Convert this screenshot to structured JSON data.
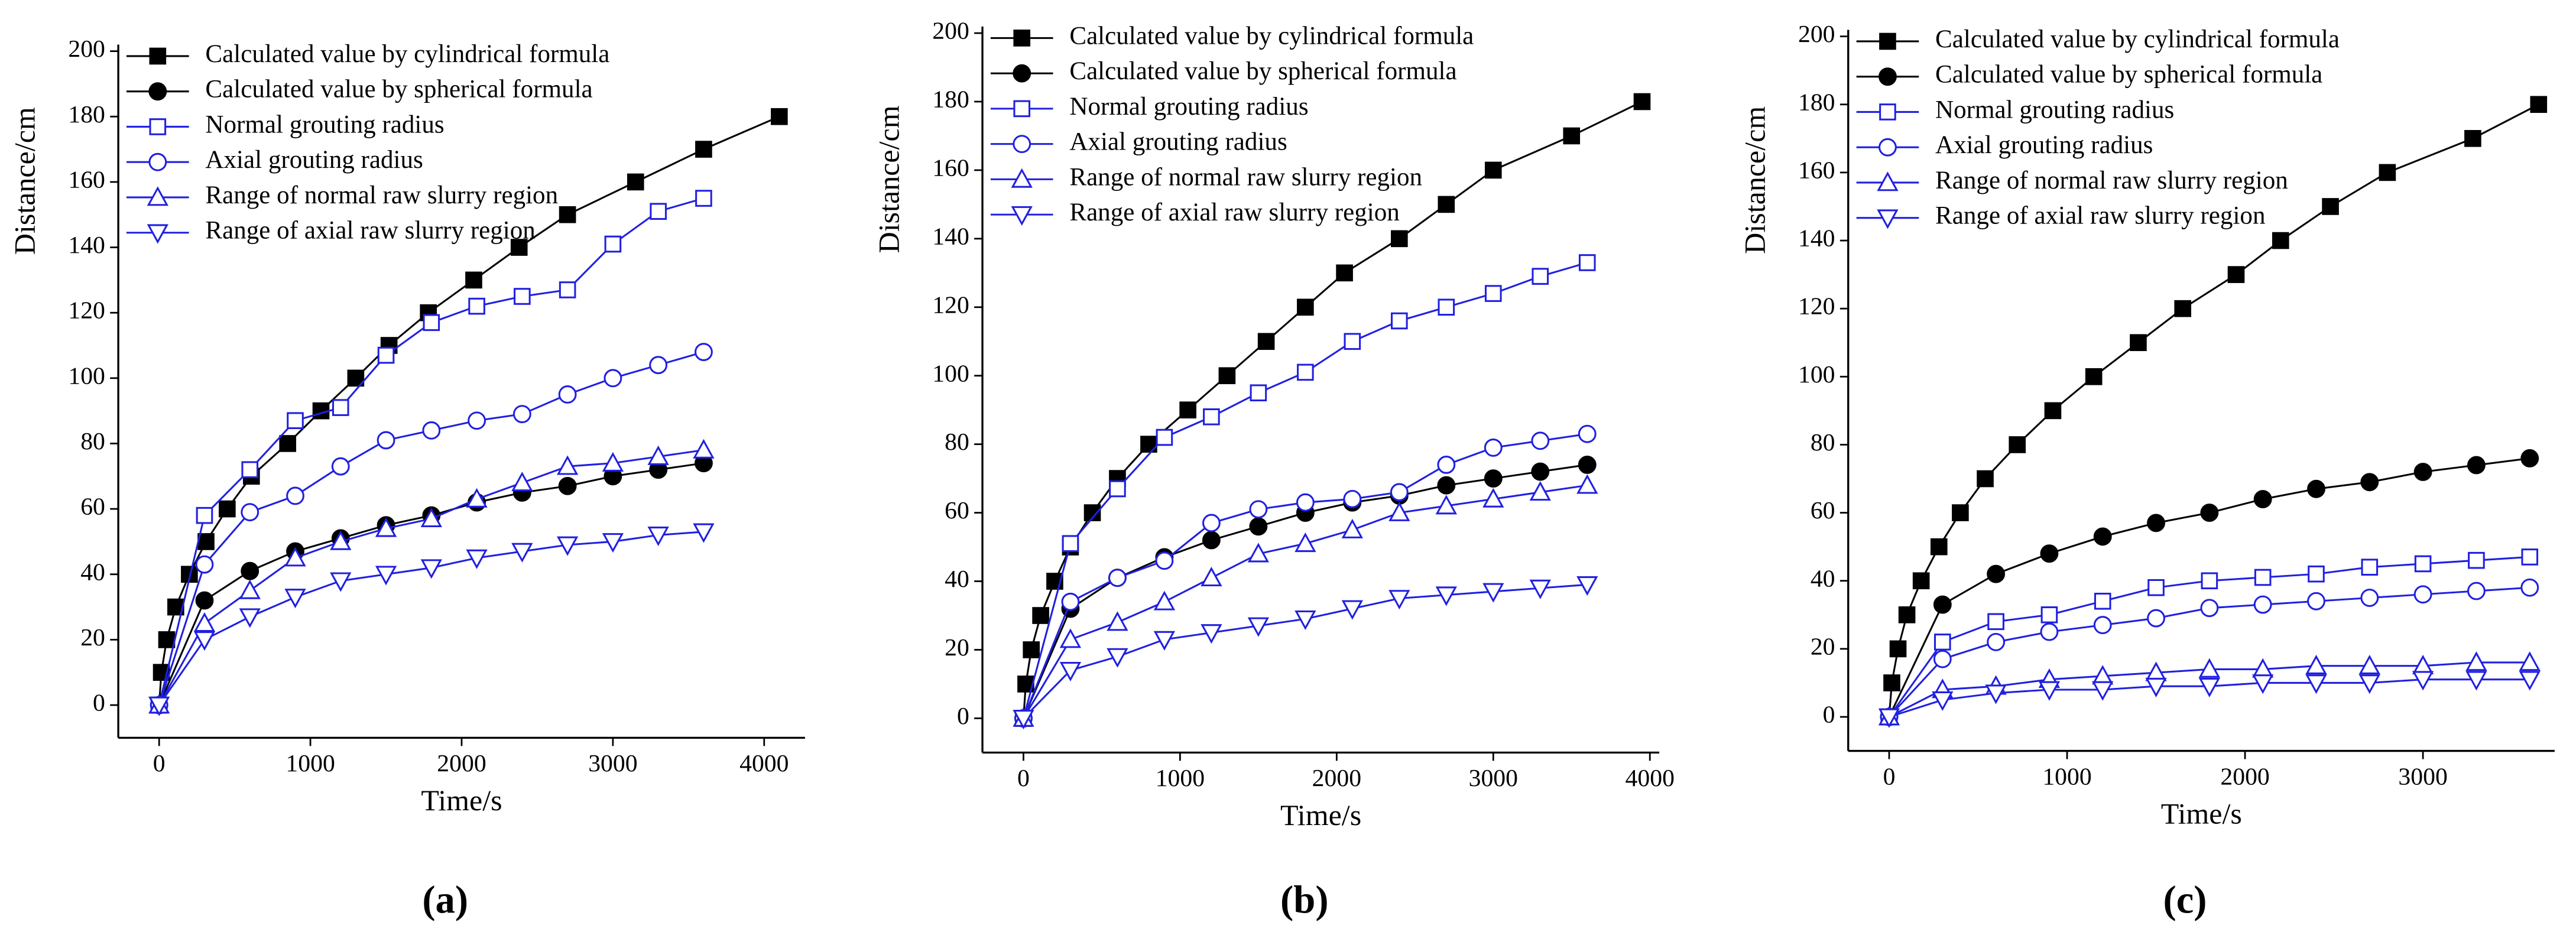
{
  "chart_data": [
    {
      "type": "line",
      "label": "(a)",
      "xlabel": "Time/s",
      "ylabel": "Distance/cm",
      "xlim": [
        -270,
        4270
      ],
      "xticks": [
        0,
        1000,
        2000,
        3000,
        4000
      ],
      "ylim": [
        -10,
        200
      ],
      "yticks": [
        0,
        20,
        40,
        60,
        80,
        100,
        120,
        140,
        160,
        180,
        200
      ],
      "legend": "upper-left",
      "series": [
        {
          "name": "Calculated value by cylindrical formula",
          "color": "#000000",
          "marker": "square",
          "filled": true,
          "x": [
            0,
            15,
            50,
            110,
            200,
            310,
            450,
            610,
            850,
            1070,
            1300,
            1520,
            1780,
            2080,
            2380,
            2700,
            3150,
            3600,
            4100
          ],
          "values": [
            0,
            10,
            20,
            30,
            40,
            50,
            60,
            70,
            80,
            90,
            100,
            110,
            120,
            130,
            140,
            150,
            160,
            170,
            180
          ]
        },
        {
          "name": "Calculated value by spherical formula",
          "color": "#000000",
          "marker": "circle",
          "filled": true,
          "x": [
            0,
            300,
            600,
            900,
            1200,
            1500,
            1800,
            2100,
            2400,
            2700,
            3000,
            3300,
            3600
          ],
          "values": [
            0,
            32,
            41,
            47,
            51,
            55,
            58,
            62,
            65,
            67,
            70,
            72,
            74
          ]
        },
        {
          "name": "Normal grouting radius",
          "color": "#2020e0",
          "marker": "square",
          "filled": false,
          "x": [
            0,
            300,
            600,
            900,
            1200,
            1500,
            1800,
            2100,
            2400,
            2700,
            3000,
            3300,
            3600
          ],
          "values": [
            0,
            58,
            72,
            87,
            91,
            107,
            117,
            122,
            125,
            127,
            141,
            151,
            155
          ]
        },
        {
          "name": "Axial grouting radius",
          "color": "#2020e0",
          "marker": "circle",
          "filled": false,
          "x": [
            0,
            300,
            600,
            900,
            1200,
            1500,
            1800,
            2100,
            2400,
            2700,
            3000,
            3300,
            3600
          ],
          "values": [
            0,
            43,
            59,
            64,
            73,
            81,
            84,
            87,
            89,
            95,
            100,
            104,
            108
          ]
        },
        {
          "name": "Range of normal raw slurry region",
          "color": "#2020e0",
          "marker": "triangle-up",
          "filled": false,
          "x": [
            0,
            300,
            600,
            900,
            1200,
            1500,
            1800,
            2100,
            2400,
            2700,
            3000,
            3300,
            3600
          ],
          "values": [
            0,
            25,
            35,
            45,
            50,
            54,
            57,
            63,
            68,
            73,
            74,
            76,
            78
          ]
        },
        {
          "name": "Range of axial raw slurry region",
          "color": "#2020e0",
          "marker": "triangle-down",
          "filled": false,
          "x": [
            0,
            300,
            600,
            900,
            1200,
            1500,
            1800,
            2100,
            2400,
            2700,
            3000,
            3300,
            3600
          ],
          "values": [
            0,
            20,
            27,
            33,
            38,
            40,
            42,
            45,
            47,
            49,
            50,
            52,
            53
          ]
        }
      ]
    },
    {
      "type": "line",
      "label": "(b)",
      "xlabel": "Time/s",
      "ylabel": "Distance/cm",
      "xlim": [
        -262,
        4060
      ],
      "xticks": [
        0,
        1000,
        2000,
        3000,
        4000
      ],
      "ylim": [
        -10,
        200
      ],
      "yticks": [
        0,
        20,
        40,
        60,
        80,
        100,
        120,
        140,
        160,
        180,
        200
      ],
      "legend": "upper-left",
      "series": [
        {
          "name": "Calculated value by cylindrical formula",
          "color": "#000000",
          "marker": "square",
          "filled": true,
          "x": [
            0,
            15,
            50,
            110,
            200,
            300,
            440,
            600,
            800,
            1050,
            1300,
            1550,
            1800,
            2050,
            2400,
            2700,
            3000,
            3500,
            3950
          ],
          "values": [
            0,
            10,
            20,
            30,
            40,
            50,
            60,
            70,
            80,
            90,
            100,
            110,
            120,
            130,
            140,
            150,
            160,
            170,
            180
          ]
        },
        {
          "name": "Calculated value by spherical formula",
          "color": "#000000",
          "marker": "circle",
          "filled": true,
          "x": [
            0,
            300,
            600,
            900,
            1200,
            1500,
            1800,
            2100,
            2400,
            2700,
            3000,
            3300,
            3600
          ],
          "values": [
            0,
            32,
            41,
            47,
            52,
            56,
            60,
            63,
            65,
            68,
            70,
            72,
            74
          ]
        },
        {
          "name": "Normal grouting radius",
          "color": "#2020e0",
          "marker": "square",
          "filled": false,
          "x": [
            0,
            300,
            600,
            900,
            1200,
            1500,
            1800,
            2100,
            2400,
            2700,
            3000,
            3300,
            3600
          ],
          "values": [
            0,
            51,
            67,
            82,
            88,
            95,
            101,
            110,
            116,
            120,
            124,
            129,
            133
          ]
        },
        {
          "name": "Axial grouting radius",
          "color": "#2020e0",
          "marker": "circle",
          "filled": false,
          "x": [
            0,
            300,
            600,
            900,
            1200,
            1500,
            1800,
            2100,
            2400,
            2700,
            3000,
            3300,
            3600
          ],
          "values": [
            0,
            34,
            41,
            46,
            57,
            61,
            63,
            64,
            66,
            74,
            79,
            81,
            83
          ]
        },
        {
          "name": "Range of normal raw slurry region",
          "color": "#2020e0",
          "marker": "triangle-up",
          "filled": false,
          "x": [
            0,
            300,
            600,
            900,
            1200,
            1500,
            1800,
            2100,
            2400,
            2700,
            3000,
            3300,
            3600
          ],
          "values": [
            0,
            23,
            28,
            34,
            41,
            48,
            51,
            55,
            60,
            62,
            64,
            66,
            68
          ]
        },
        {
          "name": "Range of axial raw slurry region",
          "color": "#2020e0",
          "marker": "triangle-down",
          "filled": false,
          "x": [
            0,
            300,
            600,
            900,
            1200,
            1500,
            1800,
            2100,
            2400,
            2700,
            3000,
            3300,
            3600
          ],
          "values": [
            0,
            14,
            18,
            23,
            25,
            27,
            29,
            32,
            35,
            36,
            37,
            38,
            39
          ]
        }
      ]
    },
    {
      "type": "line",
      "label": "(c)",
      "xlabel": "Time/s",
      "ylabel": "Distance/cm",
      "xlim": [
        -230,
        3740
      ],
      "xticks": [
        0,
        1000,
        2000,
        3000
      ],
      "ylim": [
        -10,
        200
      ],
      "yticks": [
        0,
        20,
        40,
        60,
        80,
        100,
        120,
        140,
        160,
        180,
        200
      ],
      "legend": "upper-left",
      "series": [
        {
          "name": "Calculated value by cylindrical formula",
          "color": "#000000",
          "marker": "square",
          "filled": true,
          "x": [
            0,
            15,
            50,
            100,
            180,
            280,
            400,
            540,
            720,
            920,
            1150,
            1400,
            1650,
            1950,
            2200,
            2480,
            2800,
            3280,
            3650
          ],
          "values": [
            0,
            10,
            20,
            30,
            40,
            50,
            60,
            70,
            80,
            90,
            100,
            110,
            120,
            130,
            140,
            150,
            160,
            170,
            180
          ]
        },
        {
          "name": "Calculated value by spherical formula",
          "color": "#000000",
          "marker": "circle",
          "filled": true,
          "x": [
            0,
            300,
            600,
            900,
            1200,
            1500,
            1800,
            2100,
            2400,
            2700,
            3000,
            3300,
            3600
          ],
          "values": [
            0,
            33,
            42,
            48,
            53,
            57,
            60,
            64,
            67,
            69,
            72,
            74,
            76
          ]
        },
        {
          "name": "Normal grouting radius",
          "color": "#2020e0",
          "marker": "square",
          "filled": false,
          "x": [
            0,
            300,
            600,
            900,
            1200,
            1500,
            1800,
            2100,
            2400,
            2700,
            3000,
            3300,
            3600
          ],
          "values": [
            0,
            22,
            28,
            30,
            34,
            38,
            40,
            41,
            42,
            44,
            45,
            46,
            47
          ]
        },
        {
          "name": "Axial grouting radius",
          "color": "#2020e0",
          "marker": "circle",
          "filled": false,
          "x": [
            0,
            300,
            600,
            900,
            1200,
            1500,
            1800,
            2100,
            2400,
            2700,
            3000,
            3300,
            3600
          ],
          "values": [
            0,
            17,
            22,
            25,
            27,
            29,
            32,
            33,
            34,
            35,
            36,
            37,
            38
          ]
        },
        {
          "name": "Range of normal raw slurry region",
          "color": "#2020e0",
          "marker": "triangle-up",
          "filled": false,
          "x": [
            0,
            300,
            600,
            900,
            1200,
            1500,
            1800,
            2100,
            2400,
            2700,
            3000,
            3300,
            3600
          ],
          "values": [
            0,
            8,
            9,
            11,
            12,
            13,
            14,
            14,
            15,
            15,
            15,
            16,
            16
          ]
        },
        {
          "name": "Range of axial raw slurry region",
          "color": "#2020e0",
          "marker": "triangle-down",
          "filled": false,
          "x": [
            0,
            300,
            600,
            900,
            1200,
            1500,
            1800,
            2100,
            2400,
            2700,
            3000,
            3300,
            3600
          ],
          "values": [
            0,
            5,
            7,
            8,
            8,
            9,
            9,
            10,
            10,
            10,
            11,
            11,
            11
          ]
        }
      ]
    }
  ]
}
